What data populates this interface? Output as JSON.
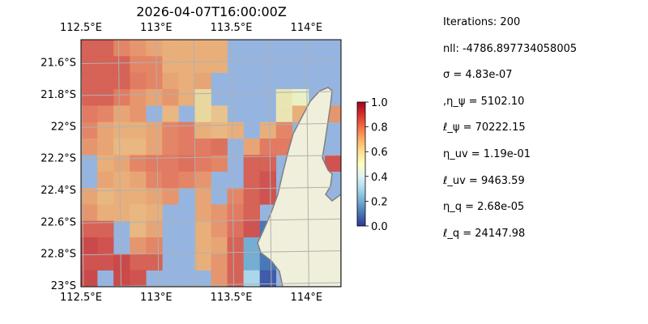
{
  "chart_data": {
    "type": "heatmap",
    "title": "2026-04-07T16:00:00Z",
    "lon_range": [
      112.5,
      114.23
    ],
    "lat_range": [
      21.46,
      23.01
    ],
    "x_ticks": [
      "112.5°E",
      "113°E",
      "113.5°E",
      "114°E"
    ],
    "x_tick_values": [
      112.5,
      113.0,
      113.5,
      114.0
    ],
    "y_ticks": [
      "21.6°S",
      "21.8°S",
      "22°S",
      "22.2°S",
      "22.4°S",
      "22.6°S",
      "22.8°S",
      "23°S"
    ],
    "y_tick_values": [
      21.6,
      21.8,
      22.0,
      22.2,
      22.4,
      22.6,
      22.8,
      23.0
    ],
    "grid": true,
    "colorbar": {
      "ticks": [
        "0.0",
        "0.2",
        "0.4",
        "0.6",
        "0.8",
        "1.0"
      ],
      "range": [
        0,
        1
      ],
      "colormap": "RdYlBu_r"
    },
    "colors": {
      "ocean": "#95b5e0",
      "land": "#efefdb",
      "coast": "#808080"
    },
    "grid_values": [
      [
        0.85,
        0.85,
        0.78,
        0.75,
        0.72,
        0.7,
        0.7,
        0.7,
        0.7,
        null,
        null,
        null,
        null,
        null,
        null,
        null
      ],
      [
        0.85,
        0.85,
        0.85,
        0.78,
        0.78,
        0.7,
        0.7,
        0.7,
        0.7,
        null,
        null,
        null,
        null,
        null,
        null,
        null
      ],
      [
        0.85,
        0.85,
        0.85,
        0.8,
        0.78,
        0.72,
        0.7,
        0.72,
        null,
        null,
        null,
        null,
        null,
        null,
        null,
        null
      ],
      [
        0.85,
        0.85,
        0.8,
        0.75,
        0.72,
        0.75,
        0.7,
        0.6,
        null,
        null,
        null,
        null,
        0.55,
        0.5,
        null,
        null
      ],
      [
        0.8,
        0.78,
        0.72,
        0.75,
        null,
        0.68,
        null,
        0.6,
        0.65,
        null,
        null,
        null,
        0.55,
        0.7,
        null,
        0.75
      ],
      [
        0.78,
        0.72,
        0.7,
        0.7,
        0.72,
        0.78,
        0.8,
        0.7,
        0.68,
        0.7,
        null,
        0.7,
        0.78,
        null,
        null,
        null
      ],
      [
        0.75,
        0.72,
        0.68,
        0.68,
        0.72,
        0.78,
        0.8,
        0.8,
        0.82,
        null,
        0.72,
        0.8,
        0.8,
        null,
        null,
        null
      ],
      [
        null,
        0.7,
        0.72,
        0.78,
        0.8,
        0.8,
        0.82,
        0.8,
        0.78,
        null,
        0.85,
        0.85,
        null,
        null,
        null,
        0.88
      ],
      [
        null,
        0.72,
        0.7,
        0.72,
        0.78,
        0.8,
        0.78,
        0.75,
        null,
        null,
        0.85,
        0.88,
        null,
        null,
        null,
        null
      ],
      [
        0.72,
        0.68,
        0.7,
        0.7,
        0.72,
        0.75,
        null,
        0.72,
        null,
        0.78,
        0.85,
        0.88,
        null,
        null,
        null,
        null
      ],
      [
        0.75,
        0.7,
        0.7,
        0.68,
        0.7,
        null,
        null,
        0.72,
        0.75,
        0.8,
        0.85,
        null,
        null,
        null,
        null,
        null
      ],
      [
        0.85,
        0.85,
        null,
        0.68,
        0.72,
        null,
        null,
        0.7,
        0.75,
        0.82,
        0.88,
        0.1,
        null,
        null,
        null,
        null
      ],
      [
        0.9,
        0.88,
        null,
        0.75,
        0.78,
        null,
        null,
        0.7,
        0.72,
        0.85,
        0.2,
        0.05,
        null,
        null,
        null,
        null
      ],
      [
        0.88,
        0.88,
        0.9,
        0.85,
        0.85,
        null,
        null,
        0.7,
        0.75,
        0.85,
        0.2,
        0.1,
        null,
        null,
        null,
        null
      ],
      [
        0.9,
        null,
        0.9,
        0.88,
        null,
        null,
        null,
        null,
        0.75,
        0.85,
        0.3,
        0.05,
        null,
        null,
        null,
        null
      ]
    ]
  },
  "stats": [
    "Iterations: 200",
    "nll: -4786.897734058005",
    "σ = 4.83e-07",
    ",η_ψ = 5102.10",
    "ℓ_ψ = 70222.15",
    "η_uv = 1.19e-01",
    "ℓ_uv = 9463.59",
    "η_q = 2.68e-05",
    "ℓ_q = 24147.98"
  ]
}
